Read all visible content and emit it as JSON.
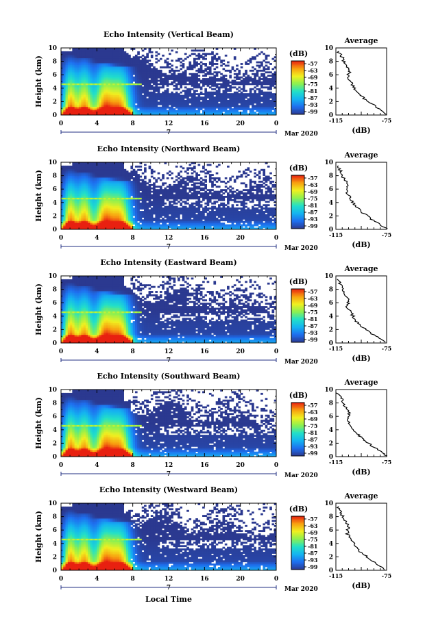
{
  "figure": {
    "xlabel": "Local Time",
    "date_label": "Mar 2020",
    "day_label": "7",
    "ylabel": "Height (km)",
    "colorbar_unit": "(dB)",
    "colorbar_ticks": [
      "-57",
      "-63",
      "-69",
      "-75",
      "-81",
      "-87",
      "-93",
      "-99"
    ],
    "avg_title": "Average",
    "avg_xlabel": "(dB)",
    "avg_xticks": [
      "-115",
      "-75"
    ]
  },
  "chart_data": [
    {
      "type": "heatmap",
      "title": "Echo Intensity (Vertical Beam)",
      "x_ticks": [
        "0",
        "4",
        "8",
        "12",
        "16",
        "20",
        "0"
      ],
      "y_ticks": [
        "0",
        "2",
        "4",
        "6",
        "8",
        "10"
      ],
      "xlim": [
        0,
        24
      ],
      "ylim": [
        0,
        10
      ],
      "clim": [
        -99,
        -57
      ],
      "colorscale": [
        "#2b3990",
        "#1e6ff0",
        "#14b4f0",
        "#22e0c8",
        "#8cf050",
        "#f0f020",
        "#f8a010",
        "#e82010"
      ],
      "average_profile": {
        "x": [
          -75,
          -80,
          -88,
          -95,
          -100,
          -102,
          -106,
          -104,
          -108,
          -110,
          -113
        ],
        "y": [
          0.1,
          0.8,
          1.8,
          2.8,
          3.8,
          4.6,
          5.4,
          6.6,
          7.6,
          8.6,
          9.4
        ],
        "xlim": [
          -115,
          -75
        ],
        "ylim": [
          0,
          10
        ]
      }
    },
    {
      "type": "heatmap",
      "title": "Echo Intensity (Northward Beam)",
      "x_ticks": [
        "0",
        "4",
        "8",
        "12",
        "16",
        "20",
        "0"
      ],
      "y_ticks": [
        "0",
        "2",
        "4",
        "6",
        "8",
        "10"
      ],
      "xlim": [
        0,
        24
      ],
      "ylim": [
        0,
        10
      ],
      "clim": [
        -99,
        -57
      ],
      "colorscale": [
        "#2b3990",
        "#1e6ff0",
        "#14b4f0",
        "#22e0c8",
        "#8cf050",
        "#f0f020",
        "#f8a010",
        "#e82010"
      ],
      "average_profile": {
        "x": [
          -75,
          -81,
          -89,
          -96,
          -101,
          -103,
          -106,
          -105,
          -109,
          -111,
          -114
        ],
        "y": [
          0.1,
          0.8,
          1.8,
          2.8,
          3.8,
          4.6,
          5.4,
          6.6,
          7.6,
          8.6,
          9.4
        ],
        "xlim": [
          -115,
          -75
        ],
        "ylim": [
          0,
          10
        ]
      }
    },
    {
      "type": "heatmap",
      "title": "Echo Intensity (Eastward Beam)",
      "x_ticks": [
        "0",
        "4",
        "8",
        "12",
        "16",
        "20",
        "0"
      ],
      "y_ticks": [
        "0",
        "2",
        "4",
        "6",
        "8",
        "10"
      ],
      "xlim": [
        0,
        24
      ],
      "ylim": [
        0,
        10
      ],
      "clim": [
        -99,
        -57
      ],
      "colorscale": [
        "#2b3990",
        "#1e6ff0",
        "#14b4f0",
        "#22e0c8",
        "#8cf050",
        "#f0f020",
        "#f8a010",
        "#e82010"
      ],
      "average_profile": {
        "x": [
          -76,
          -82,
          -90,
          -97,
          -101,
          -103,
          -106,
          -105,
          -109,
          -111,
          -113
        ],
        "y": [
          0.1,
          0.8,
          1.8,
          2.8,
          3.8,
          4.6,
          5.4,
          6.6,
          7.6,
          8.6,
          9.4
        ],
        "xlim": [
          -115,
          -75
        ],
        "ylim": [
          0,
          10
        ]
      }
    },
    {
      "type": "heatmap",
      "title": "Echo Intensity (Southward Beam)",
      "x_ticks": [
        "0",
        "4",
        "8",
        "12",
        "16",
        "20",
        "0"
      ],
      "y_ticks": [
        "0",
        "2",
        "4",
        "6",
        "8",
        "10"
      ],
      "xlim": [
        0,
        24
      ],
      "ylim": [
        0,
        10
      ],
      "clim": [
        -99,
        -57
      ],
      "colorscale": [
        "#2b3990",
        "#1e6ff0",
        "#14b4f0",
        "#22e0c8",
        "#8cf050",
        "#f0f020",
        "#f8a010",
        "#e82010"
      ],
      "average_profile": {
        "x": [
          -75,
          -80,
          -88,
          -95,
          -100,
          -103,
          -106,
          -104,
          -108,
          -110,
          -114
        ],
        "y": [
          0.1,
          0.8,
          1.8,
          2.8,
          3.8,
          4.6,
          5.4,
          6.6,
          7.6,
          8.6,
          9.4
        ],
        "xlim": [
          -115,
          -75
        ],
        "ylim": [
          0,
          10
        ]
      }
    },
    {
      "type": "heatmap",
      "title": "Echo Intensity (Westward Beam)",
      "x_ticks": [
        "0",
        "4",
        "8",
        "12",
        "16",
        "20",
        "0"
      ],
      "y_ticks": [
        "0",
        "2",
        "4",
        "6",
        "8",
        "10"
      ],
      "xlim": [
        0,
        24
      ],
      "ylim": [
        0,
        10
      ],
      "clim": [
        -99,
        -57
      ],
      "colorscale": [
        "#2b3990",
        "#1e6ff0",
        "#14b4f0",
        "#22e0c8",
        "#8cf050",
        "#f0f020",
        "#f8a010",
        "#e82010"
      ],
      "average_profile": {
        "x": [
          -76,
          -81,
          -89,
          -96,
          -100,
          -103,
          -106,
          -105,
          -109,
          -111,
          -113
        ],
        "y": [
          0.1,
          0.8,
          1.8,
          2.8,
          3.8,
          4.6,
          5.4,
          6.6,
          7.6,
          8.6,
          9.4
        ],
        "xlim": [
          -115,
          -75
        ],
        "ylim": [
          0,
          10
        ]
      }
    }
  ]
}
